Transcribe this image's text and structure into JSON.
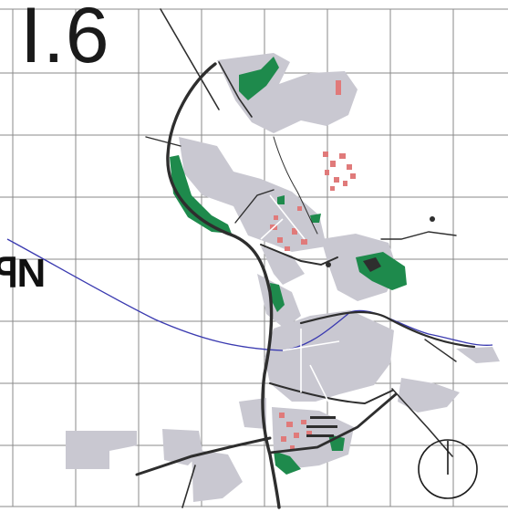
{
  "sheet": {
    "number": "I.6",
    "edge_label": "ꟼN"
  },
  "legend_colors": {
    "urban_area": "#c9c8d1",
    "green_space": "#1e8a4c",
    "buildings": "#e07a7a",
    "roads": "#2e2e2e",
    "river_canal": "#3a3ab0",
    "grid": "#8a8a8a"
  },
  "map": {
    "grid": {
      "columns": 8,
      "rows": 8
    }
  }
}
